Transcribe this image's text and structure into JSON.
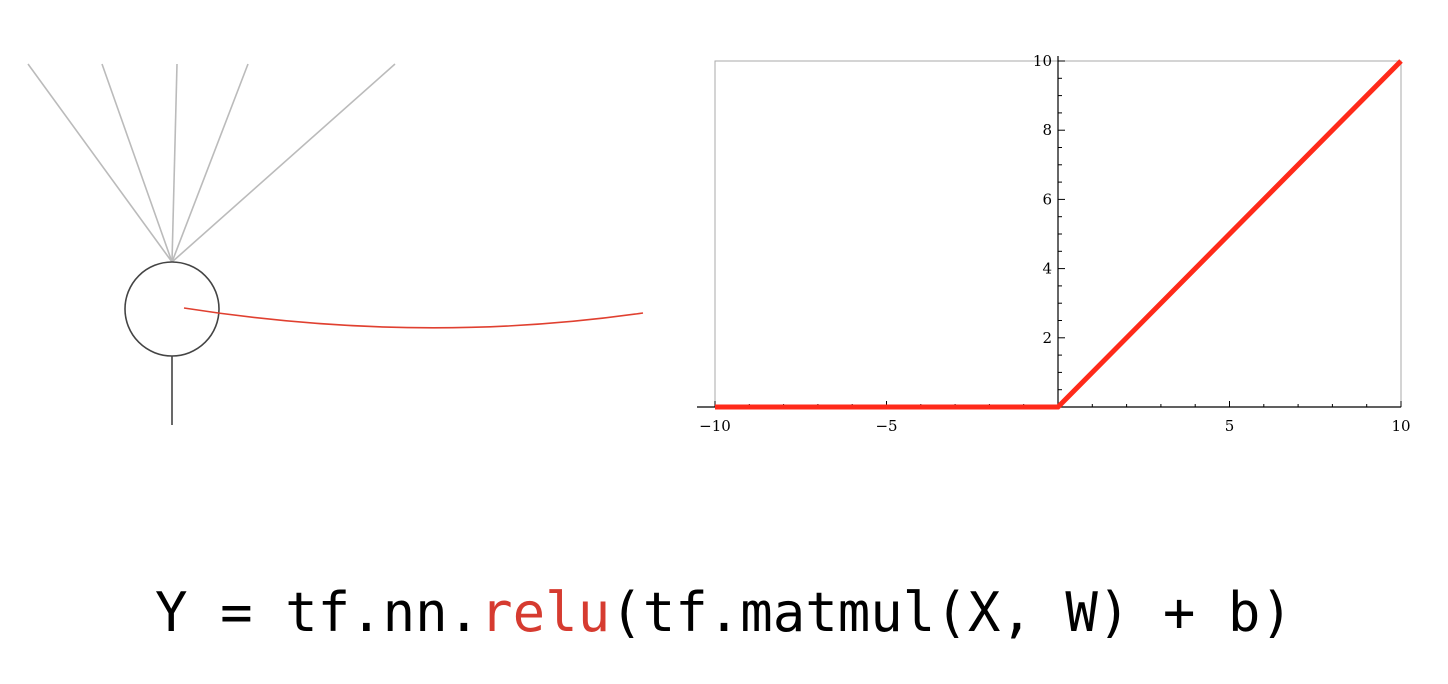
{
  "chart_data": {
    "type": "line",
    "title": "",
    "xlabel": "",
    "ylabel": "",
    "xlim": [
      -10,
      10
    ],
    "ylim": [
      0,
      10
    ],
    "x_ticks": [
      -10,
      -5,
      5,
      10
    ],
    "x_tick_labels": [
      "−10",
      "−5",
      "5",
      "10"
    ],
    "y_ticks": [
      2,
      4,
      6,
      8,
      10
    ],
    "y_tick_labels": [
      "2",
      "4",
      "6",
      "8",
      "10"
    ],
    "grid": false,
    "legend": "none",
    "series": [
      {
        "color": "#ff2a1a",
        "x": [
          -10,
          0,
          10
        ],
        "y": [
          0,
          0,
          10
        ]
      }
    ]
  },
  "diagram": {
    "input_line_color": "#bbbbbb",
    "neuron_stroke_color": "#444444",
    "connector_color": "#e04030"
  },
  "formula": {
    "prefix": "Y = tf.nn.",
    "fn": "relu",
    "suffix": "(tf.matmul(X, W) + b)",
    "fn_color": "#d63b30"
  }
}
